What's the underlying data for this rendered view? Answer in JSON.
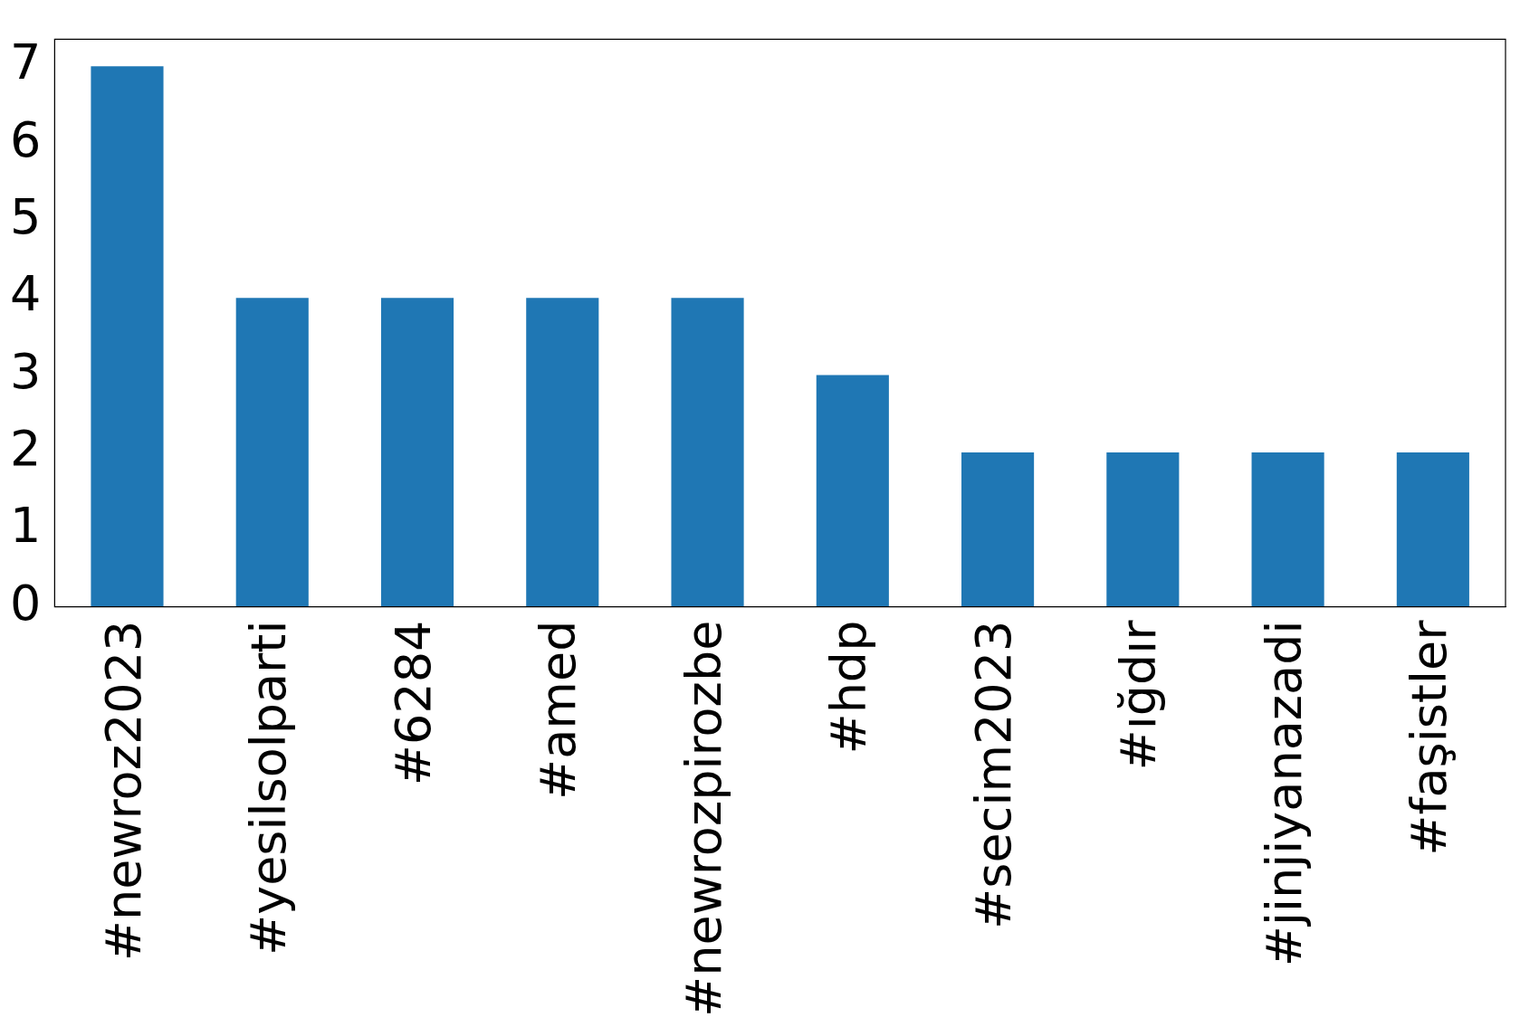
{
  "chart_data": {
    "type": "bar",
    "categories": [
      "#newroz2023",
      "#yesilsolparti",
      "#6284",
      "#amed",
      "#newrozpirozbe",
      "#hdp",
      "#secim2023",
      "#ığdır",
      "#jinjiyanazadi",
      "#faşistler"
    ],
    "values": [
      7,
      4,
      4,
      4,
      4,
      3,
      2,
      2,
      2,
      2
    ],
    "color": "#1f77b4",
    "ylim": [
      0,
      7.35
    ],
    "yticks": [
      0,
      1,
      2,
      3,
      4,
      5,
      6,
      7
    ],
    "grid": false,
    "legend": false
  }
}
